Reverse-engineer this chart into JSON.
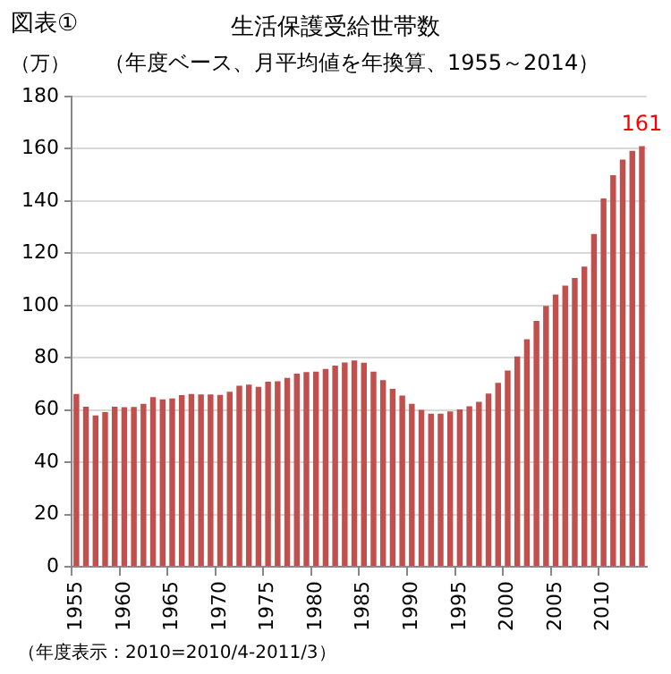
{
  "chart_data": {
    "type": "bar",
    "title": "生活保護受給世帯数",
    "subtitle": "（年度ベース、月平均値を年換算、1955～2014）",
    "ylabel": "（万）",
    "annotations": [
      "図表①",
      "（年度表示：2010=2010/4-2011/3）"
    ],
    "categories": [
      "1955",
      null,
      null,
      null,
      null,
      "1960",
      null,
      null,
      null,
      null,
      "1965",
      null,
      null,
      null,
      null,
      "1970",
      null,
      null,
      null,
      null,
      "1975",
      null,
      null,
      null,
      null,
      "1980",
      null,
      null,
      null,
      null,
      "1985",
      null,
      null,
      null,
      null,
      "1990",
      null,
      null,
      null,
      null,
      "1995",
      null,
      null,
      null,
      null,
      "2000",
      null,
      null,
      null,
      null,
      "2005",
      null,
      null,
      null,
      null,
      "2010",
      null,
      null,
      null,
      null
    ],
    "values": [
      66.1,
      61.3,
      57.9,
      59.2,
      61.3,
      61.1,
      61.2,
      62.4,
      64.9,
      64.1,
      64.4,
      65.7,
      66.1,
      66.0,
      66.0,
      65.8,
      67.0,
      69.3,
      69.7,
      68.9,
      70.8,
      71.0,
      72.3,
      73.9,
      74.5,
      74.7,
      75.7,
      77.0,
      78.2,
      79.0,
      78.1,
      74.7,
      71.4,
      68.1,
      65.5,
      62.4,
      60.1,
      58.6,
      58.6,
      59.5,
      60.2,
      61.4,
      63.1,
      66.3,
      70.4,
      75.1,
      80.5,
      87.1,
      94.1,
      99.8,
      104.2,
      107.6,
      110.5,
      114.9,
      127.4,
      141.0,
      149.9,
      155.9,
      159.2,
      161
    ],
    "value_labels": [
      null,
      null,
      null,
      null,
      null,
      null,
      null,
      null,
      null,
      null,
      null,
      null,
      null,
      null,
      null,
      null,
      null,
      null,
      null,
      null,
      null,
      null,
      null,
      null,
      null,
      null,
      null,
      null,
      null,
      null,
      null,
      null,
      null,
      null,
      null,
      null,
      null,
      null,
      null,
      null,
      null,
      null,
      null,
      null,
      null,
      null,
      null,
      null,
      null,
      null,
      null,
      null,
      null,
      null,
      null,
      null,
      null,
      null,
      null,
      "161"
    ],
    "color": "#c0504d",
    "ylim": [
      0,
      180
    ],
    "yticks": [
      0,
      20,
      40,
      60,
      80,
      100,
      120,
      140,
      160,
      180
    ],
    "grid": "y",
    "legend": false
  }
}
